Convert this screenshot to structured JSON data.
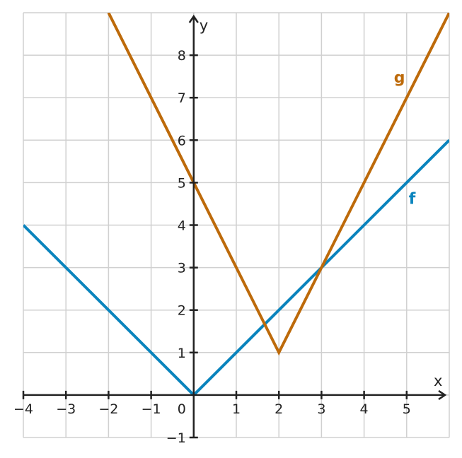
{
  "chart_data": {
    "type": "line",
    "title": "",
    "xlabel": "x",
    "ylabel": "y",
    "xlim": [
      -4,
      6
    ],
    "ylim": [
      -1,
      9
    ],
    "grid": true,
    "x_ticks": [
      {
        "value": -4,
        "label": "−4"
      },
      {
        "value": -3,
        "label": "−3"
      },
      {
        "value": -2,
        "label": "−2"
      },
      {
        "value": -1,
        "label": "−1"
      },
      {
        "value": 1,
        "label": "1"
      },
      {
        "value": 2,
        "label": "2"
      },
      {
        "value": 3,
        "label": "3"
      },
      {
        "value": 4,
        "label": "4"
      },
      {
        "value": 5,
        "label": "5"
      }
    ],
    "y_ticks": [
      {
        "value": -1,
        "label": "−1"
      },
      {
        "value": 1,
        "label": "1"
      },
      {
        "value": 2,
        "label": "2"
      },
      {
        "value": 3,
        "label": "3"
      },
      {
        "value": 4,
        "label": "4"
      },
      {
        "value": 5,
        "label": "5"
      },
      {
        "value": 6,
        "label": "6"
      },
      {
        "value": 7,
        "label": "7"
      },
      {
        "value": 8,
        "label": "8"
      }
    ],
    "origin_label": "0",
    "series": [
      {
        "name": "f",
        "color": "#0a84bd",
        "x": [
          -4,
          0,
          6
        ],
        "y": [
          4,
          0,
          6
        ],
        "label_at": [
          5.05,
          4.5
        ]
      },
      {
        "name": "g",
        "color": "#bd6a0a",
        "x": [
          -2,
          2,
          6
        ],
        "y": [
          9,
          1,
          9
        ],
        "label_at": [
          4.7,
          7.35
        ]
      }
    ]
  }
}
